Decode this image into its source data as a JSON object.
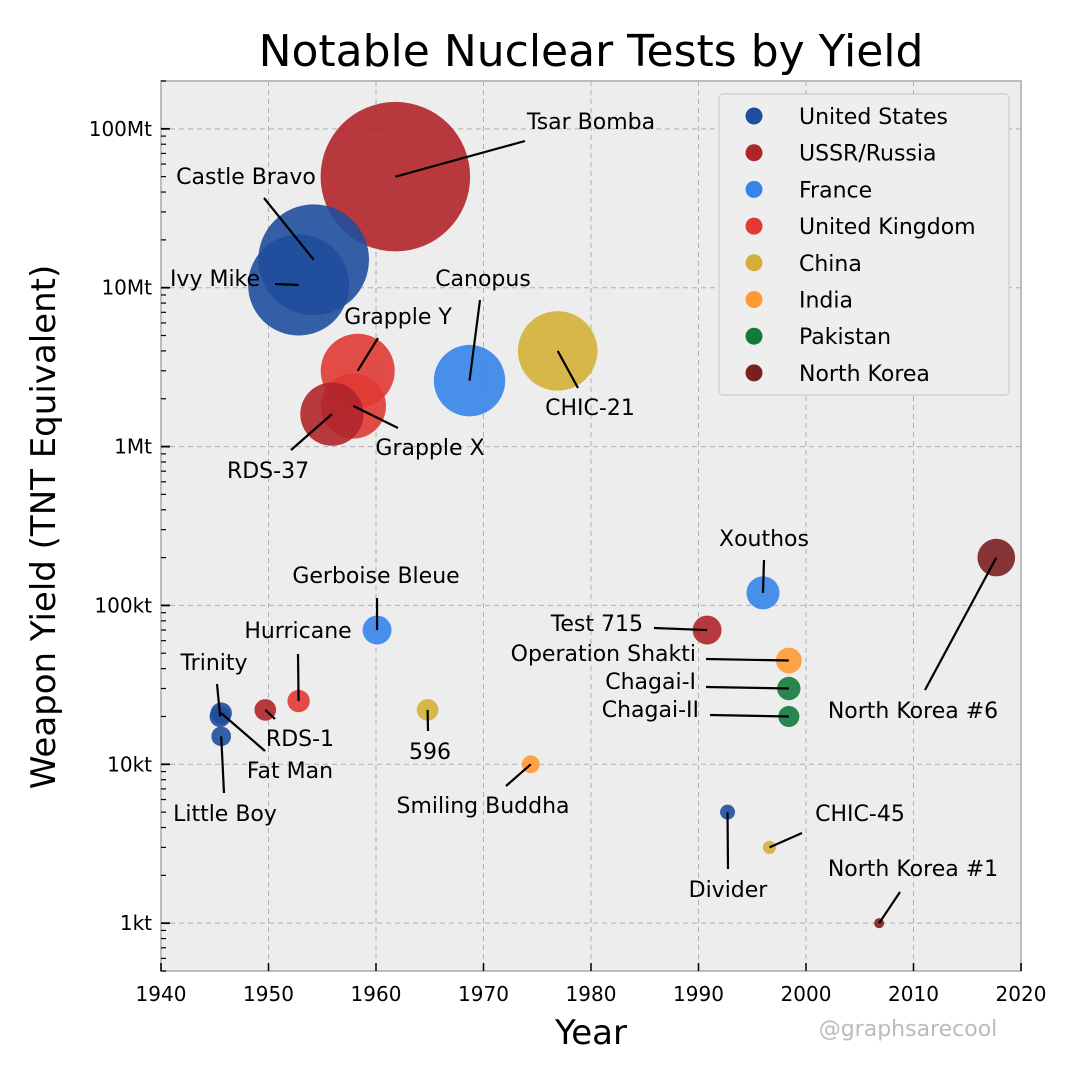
{
  "chart_data": {
    "type": "scatter",
    "title": "Notable Nuclear Tests by Yield",
    "xlabel": "Year",
    "ylabel": "Weapon Yield (TNT Equivalent)",
    "xlim": [
      1940,
      2020
    ],
    "ylim_kt": [
      0.5,
      200000
    ],
    "yscale": "log",
    "grid": true,
    "x_ticks": [
      1940,
      1950,
      1960,
      1970,
      1980,
      1990,
      2000,
      2010,
      2020
    ],
    "y_ticks": [
      {
        "value_kt": 1,
        "label": "1kt"
      },
      {
        "value_kt": 10,
        "label": "10kt"
      },
      {
        "value_kt": 100,
        "label": "100kt"
      },
      {
        "value_kt": 1000,
        "label": "1Mt"
      },
      {
        "value_kt": 10000,
        "label": "10Mt"
      },
      {
        "value_kt": 100000,
        "label": "100Mt"
      }
    ],
    "legend_position": "top-right",
    "series": [
      {
        "name": "United States",
        "color": "#1f4e9c",
        "points": [
          {
            "label": "Trinity",
            "year": 1945.5,
            "yield_kt": 20
          },
          {
            "label": "Fat Man",
            "year": 1945.6,
            "yield_kt": 21
          },
          {
            "label": "Little Boy",
            "year": 1945.6,
            "yield_kt": 15
          },
          {
            "label": "Ivy Mike",
            "year": 1952.8,
            "yield_kt": 10400
          },
          {
            "label": "Castle Bravo",
            "year": 1954.2,
            "yield_kt": 15000
          },
          {
            "label": "Divider",
            "year": 1992.7,
            "yield_kt": 5
          }
        ]
      },
      {
        "name": "USSR/Russia",
        "color": "#b0252a",
        "points": [
          {
            "label": "RDS-1",
            "year": 1949.7,
            "yield_kt": 22
          },
          {
            "label": "RDS-37",
            "year": 1955.9,
            "yield_kt": 1600
          },
          {
            "label": "Tsar Bomba",
            "year": 1961.8,
            "yield_kt": 50000
          },
          {
            "label": "Test 715",
            "year": 1990.8,
            "yield_kt": 70
          }
        ]
      },
      {
        "name": "France",
        "color": "#3584e8",
        "points": [
          {
            "label": "Gerboise Bleue",
            "year": 1960.1,
            "yield_kt": 70
          },
          {
            "label": "Canopus",
            "year": 1968.7,
            "yield_kt": 2600
          },
          {
            "label": "Xouthos",
            "year": 1996.0,
            "yield_kt": 120
          }
        ]
      },
      {
        "name": "United Kingdom",
        "color": "#e03a33",
        "points": [
          {
            "label": "Hurricane",
            "year": 1952.8,
            "yield_kt": 25
          },
          {
            "label": "Grapple X",
            "year": 1957.9,
            "yield_kt": 1800
          },
          {
            "label": "Grapple Y",
            "year": 1958.3,
            "yield_kt": 3000
          }
        ]
      },
      {
        "name": "China",
        "color": "#d4af37",
        "points": [
          {
            "label": "596",
            "year": 1964.8,
            "yield_kt": 22
          },
          {
            "label": "CHIC-21",
            "year": 1976.9,
            "yield_kt": 4000
          },
          {
            "label": "CHIC-45",
            "year": 1996.6,
            "yield_kt": 3
          }
        ]
      },
      {
        "name": "India",
        "color": "#ff9933",
        "points": [
          {
            "label": "Smiling Buddha",
            "year": 1974.4,
            "yield_kt": 10
          },
          {
            "label": "Operation Shakti",
            "year": 1998.4,
            "yield_kt": 45
          }
        ]
      },
      {
        "name": "Pakistan",
        "color": "#147a3c",
        "points": [
          {
            "label": "Chagai-I",
            "year": 1998.4,
            "yield_kt": 30
          },
          {
            "label": "Chagai-II",
            "year": 1998.4,
            "yield_kt": 20
          }
        ]
      },
      {
        "name": "North Korea",
        "color": "#7a1f1f",
        "points": [
          {
            "label": "North Korea #1",
            "year": 2006.8,
            "yield_kt": 1
          },
          {
            "label": "North Korea #6",
            "year": 2017.7,
            "yield_kt": 200
          }
        ]
      }
    ]
  },
  "watermark": "@graphsarecool"
}
